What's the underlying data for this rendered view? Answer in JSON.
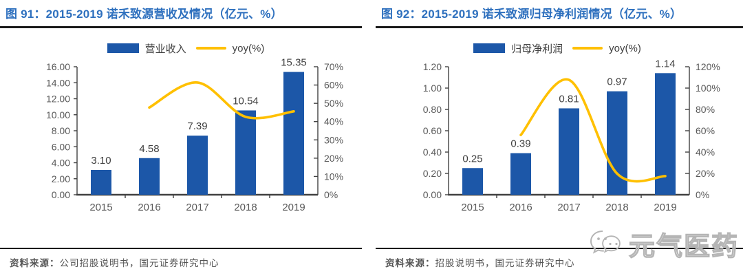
{
  "watermark": {
    "text": "元气医药",
    "icon": "wechat-icon"
  },
  "colors": {
    "bar": "#1C57A8",
    "line": "#FFC000",
    "title": "#2E70BE",
    "axis_line": "#404040",
    "axis_text": "#595959",
    "value_label": "#404040",
    "divider": "#1a1a1a"
  },
  "figures": [
    {
      "title": "图 91：2015-2019 诺禾致源营收及情况（亿元、%）",
      "legend": [
        {
          "label": "营业收入",
          "swatch": "bar"
        },
        {
          "label": "yoy(%)",
          "swatch": "line"
        }
      ],
      "source_label": "资料来源：",
      "source_text": "公司招股说明书，国元证券研究中心",
      "chart_data": {
        "type": "combo-bar-line",
        "categories": [
          "2015",
          "2016",
          "2017",
          "2018",
          "2019"
        ],
        "series": [
          {
            "name": "营业收入",
            "type": "bar",
            "axis": "left",
            "values": [
              3.1,
              4.58,
              7.39,
              10.54,
              15.35
            ],
            "labels": [
              "3.10",
              "4.58",
              "7.39",
              "10.54",
              "15.35"
            ]
          },
          {
            "name": "yoy(%)",
            "type": "line",
            "axis": "right",
            "values": [
              null,
              47.7,
              61.4,
              42.6,
              45.6
            ]
          }
        ],
        "left_axis": {
          "min": 0,
          "max": 16,
          "step": 2,
          "tick_labels": [
            "0.00",
            "2.00",
            "4.00",
            "6.00",
            "8.00",
            "10.00",
            "12.00",
            "14.00",
            "16.00"
          ]
        },
        "right_axis": {
          "min": 0,
          "max": 70,
          "step": 10,
          "tick_labels": [
            "0%",
            "10%",
            "20%",
            "30%",
            "40%",
            "50%",
            "60%",
            "70%"
          ]
        },
        "grid": false,
        "legend_position": "top"
      }
    },
    {
      "title": "图 92：2015-2019 诺禾致源归母净利润情况（亿元、%）",
      "legend": [
        {
          "label": "归母净利润",
          "swatch": "bar"
        },
        {
          "label": "yoy(%)",
          "swatch": "line"
        }
      ],
      "source_label": "资料来源：",
      "source_text": "招股说明书，国元证券研究中心",
      "chart_data": {
        "type": "combo-bar-line",
        "categories": [
          "2015",
          "2016",
          "2017",
          "2018",
          "2019"
        ],
        "series": [
          {
            "name": "归母净利润",
            "type": "bar",
            "axis": "left",
            "values": [
              0.25,
              0.39,
              0.81,
              0.97,
              1.14
            ],
            "labels": [
              "0.25",
              "0.39",
              "0.81",
              "0.97",
              "1.14"
            ]
          },
          {
            "name": "yoy(%)",
            "type": "line",
            "axis": "right",
            "values": [
              null,
              56.0,
              107.7,
              19.8,
              17.5
            ]
          }
        ],
        "left_axis": {
          "min": 0,
          "max": 1.2,
          "step": 0.2,
          "tick_labels": [
            "0.00",
            "0.20",
            "0.40",
            "0.60",
            "0.80",
            "1.00",
            "1.20"
          ]
        },
        "right_axis": {
          "min": 0,
          "max": 120,
          "step": 20,
          "tick_labels": [
            "0%",
            "20%",
            "40%",
            "60%",
            "80%",
            "100%",
            "120%"
          ]
        },
        "grid": false,
        "legend_position": "top"
      }
    }
  ]
}
